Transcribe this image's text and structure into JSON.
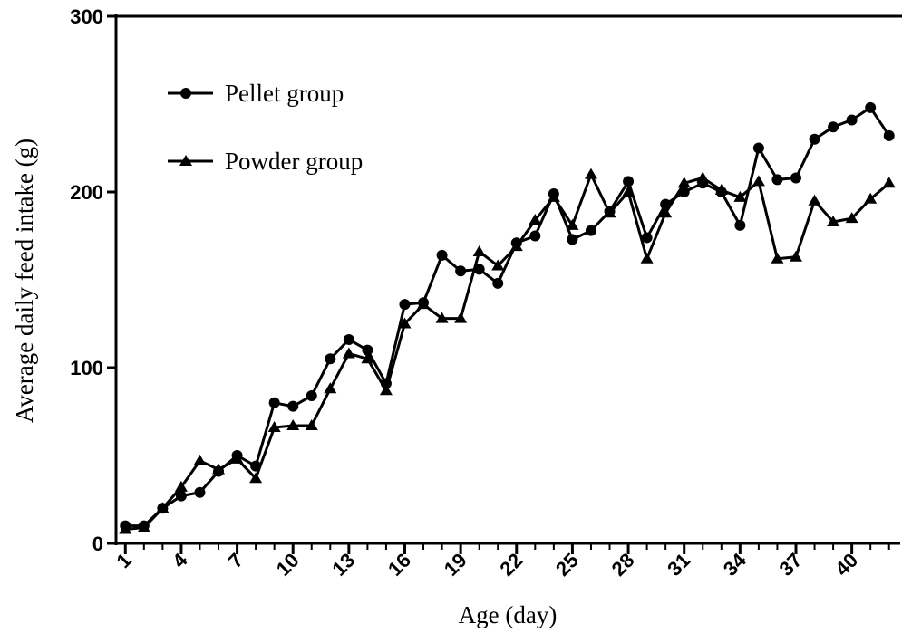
{
  "chart_data": {
    "type": "line",
    "x_label": "Age (day)",
    "y_label": "Average daily feed intake (g)",
    "x": [
      1,
      2,
      3,
      4,
      5,
      6,
      7,
      8,
      9,
      10,
      11,
      12,
      13,
      14,
      15,
      16,
      17,
      18,
      19,
      20,
      21,
      22,
      23,
      24,
      25,
      26,
      27,
      28,
      29,
      30,
      31,
      32,
      33,
      34,
      35,
      36,
      37,
      38,
      39,
      40,
      41,
      42
    ],
    "series": [
      {
        "name": "Pellet group",
        "color": "#000000",
        "marker": "circle",
        "values": [
          10,
          10,
          20,
          27,
          29,
          41,
          50,
          44,
          80,
          78,
          84,
          105,
          116,
          110,
          91,
          136,
          137,
          164,
          155,
          156,
          148,
          171,
          175,
          199,
          173,
          178,
          189,
          206,
          174,
          193,
          200,
          205,
          200,
          181,
          225,
          207,
          208,
          230,
          237,
          241,
          248,
          232
        ]
      },
      {
        "name": "Powder group",
        "color": "#000000",
        "marker": "triangle",
        "values": [
          8,
          9,
          20,
          32,
          47,
          42,
          48,
          37,
          66,
          67,
          67,
          88,
          108,
          105,
          87,
          125,
          136,
          128,
          128,
          166,
          158,
          169,
          184,
          197,
          181,
          210,
          188,
          200,
          162,
          188,
          205,
          208,
          201,
          197,
          206,
          162,
          163,
          195,
          183,
          185,
          196,
          205
        ]
      }
    ],
    "xlim": [
      0.5,
      42.5
    ],
    "xticks": [
      1,
      4,
      7,
      10,
      13,
      16,
      19,
      22,
      25,
      28,
      31,
      34,
      37,
      40
    ],
    "ylim": [
      0,
      300
    ],
    "yticks": [
      0,
      100,
      200,
      300
    ],
    "legend": "upper left"
  }
}
